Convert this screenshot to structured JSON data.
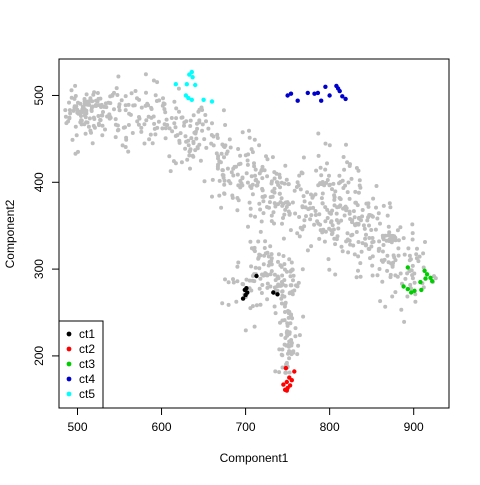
{
  "chart_data": {
    "type": "scatter",
    "title": "",
    "xlabel": "Component1",
    "ylabel": "Component2",
    "xlim": [
      478,
      942
    ],
    "ylim": [
      140,
      542
    ],
    "x_ticks": [
      500,
      600,
      700,
      800,
      900
    ],
    "y_ticks": [
      200,
      300,
      400,
      500
    ],
    "grid": false,
    "legend_position": "bottom-left",
    "background_color": "#bebebe",
    "background_density": 950,
    "background_spine": [
      [
        505,
        478
      ],
      [
        540,
        488
      ],
      [
        580,
        480
      ],
      [
        615,
        467
      ],
      [
        640,
        450
      ],
      [
        665,
        430
      ],
      [
        690,
        412
      ],
      [
        715,
        398
      ],
      [
        740,
        385
      ],
      [
        765,
        375
      ],
      [
        785,
        370
      ],
      [
        805,
        368
      ],
      [
        820,
        372
      ],
      [
        835,
        360
      ],
      [
        845,
        345
      ],
      [
        860,
        328
      ],
      [
        880,
        308
      ],
      [
        900,
        292
      ]
    ],
    "series": [
      {
        "name": "ct1",
        "color": "#000000",
        "points": [
          [
            697,
            266
          ],
          [
            700,
            270
          ],
          [
            702,
            273
          ],
          [
            699,
            276
          ],
          [
            701,
            278
          ],
          [
            713,
            292
          ],
          [
            733,
            273
          ],
          [
            738,
            271
          ]
        ]
      },
      {
        "name": "ct2",
        "color": "#ff0000",
        "points": [
          [
            748,
            186
          ],
          [
            758,
            182
          ],
          [
            752,
            175
          ],
          [
            755,
            172
          ],
          [
            749,
            170
          ],
          [
            745,
            167
          ],
          [
            750,
            163
          ],
          [
            747,
            161
          ],
          [
            749,
            160
          ],
          [
            753,
            166
          ]
        ]
      },
      {
        "name": "ct3",
        "color": "#00cd00",
        "points": [
          [
            893,
            302
          ],
          [
            913,
            298
          ],
          [
            916,
            294
          ],
          [
            920,
            290
          ],
          [
            914,
            289
          ],
          [
            922,
            286
          ],
          [
            908,
            285
          ],
          [
            888,
            280
          ],
          [
            893,
            277
          ],
          [
            901,
            275
          ],
          [
            909,
            276
          ],
          [
            897,
            273
          ]
        ]
      },
      {
        "name": "ct4",
        "color": "#0000cd",
        "points": [
          [
            750,
            500
          ],
          [
            754,
            502
          ],
          [
            762,
            494
          ],
          [
            774,
            503
          ],
          [
            782,
            502
          ],
          [
            786,
            503
          ],
          [
            790,
            494
          ],
          [
            795,
            510
          ],
          [
            800,
            500
          ],
          [
            808,
            511
          ],
          [
            810,
            508
          ],
          [
            812,
            505
          ],
          [
            815,
            499
          ],
          [
            819,
            496
          ]
        ]
      },
      {
        "name": "ct5",
        "color": "#00ffff",
        "points": [
          [
            636,
            527
          ],
          [
            633,
            524
          ],
          [
            637,
            521
          ],
          [
            617,
            513
          ],
          [
            630,
            513
          ],
          [
            640,
            512
          ],
          [
            629,
            500
          ],
          [
            632,
            497
          ],
          [
            636,
            495
          ],
          [
            650,
            495
          ],
          [
            660,
            493
          ]
        ]
      }
    ]
  }
}
